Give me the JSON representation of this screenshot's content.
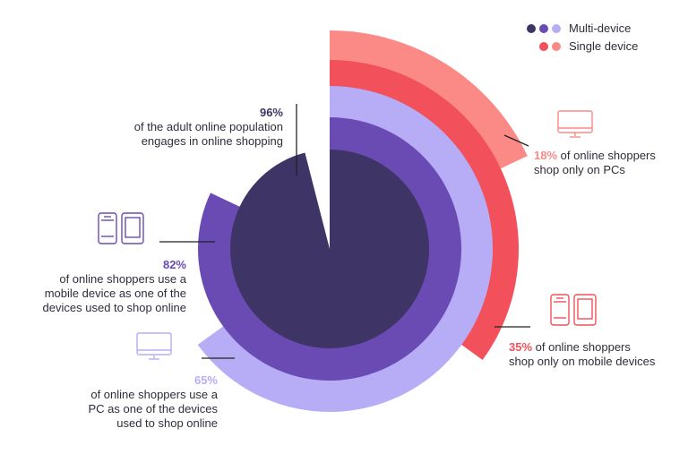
{
  "chart_data": {
    "type": "radial-bar",
    "series": [
      {
        "name": "Multi-device",
        "rings": [
          {
            "value": 96,
            "color": "#3f3466"
          },
          {
            "value": 82,
            "color": "#6a4bb3"
          },
          {
            "value": 65,
            "color": "#b7adf6"
          }
        ]
      },
      {
        "name": "Single device",
        "rings": [
          {
            "value": 35,
            "color": "#f2505a"
          },
          {
            "value": 18,
            "color": "#fb8a86"
          }
        ]
      }
    ]
  },
  "legend": {
    "multi_label": "Multi-device",
    "single_label": "Single device",
    "multi_colors": [
      "#3f3466",
      "#6a4bb3",
      "#b7adf6"
    ],
    "single_colors": [
      "#f2505a",
      "#fb8a86"
    ]
  },
  "annotations": {
    "a96": {
      "pct": "96%",
      "line1": "of the adult online population",
      "line2": "engages in online shopping"
    },
    "a82": {
      "pct": "82%",
      "line1": "of online shoppers use a",
      "line2": "mobile device as one of the",
      "line3": "devices used to shop online"
    },
    "a65": {
      "pct": "65%",
      "line1": "of online shoppers use a",
      "line2": "PC as one of the devices",
      "line3": "used to shop online"
    },
    "a18": {
      "pct": "18%",
      "line1": " of online shoppers",
      "line2": "shop only on PCs"
    },
    "a35": {
      "pct": "35%",
      "line1": " of online shoppers",
      "line2": "shop only on mobile devices"
    }
  },
  "icons": {
    "mobile_purple": "tablet-phone-icon",
    "pc_purple": "monitor-icon",
    "pc_red": "monitor-icon",
    "mobile_red": "tablet-phone-icon"
  }
}
